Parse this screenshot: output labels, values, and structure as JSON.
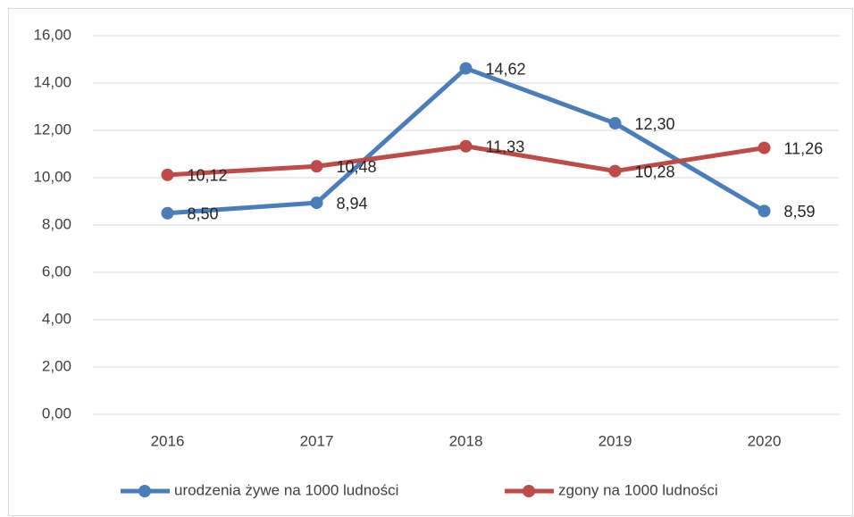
{
  "chart_data": {
    "type": "line",
    "categories": [
      "2016",
      "2017",
      "2018",
      "2019",
      "2020"
    ],
    "series": [
      {
        "name": "urodzenia żywe na 1000 ludności",
        "color": "#4a7ebb",
        "values": [
          8.5,
          8.94,
          14.62,
          12.3,
          8.59
        ],
        "value_labels": [
          "8,50",
          "8,94",
          "14,62",
          "12,30",
          "8,59"
        ]
      },
      {
        "name": "zgony na 1000 ludności",
        "color": "#be4b48",
        "values": [
          10.12,
          10.48,
          11.33,
          10.28,
          11.26
        ],
        "value_labels": [
          "10,12",
          "10,48",
          "11,33",
          "10,28",
          "11,26"
        ]
      }
    ],
    "ylim": [
      0,
      16
    ],
    "yticks": [
      {
        "value": 0,
        "label": "0,00"
      },
      {
        "value": 2,
        "label": "2,00"
      },
      {
        "value": 4,
        "label": "4,00"
      },
      {
        "value": 6,
        "label": "6,00"
      },
      {
        "value": 8,
        "label": "8,00"
      },
      {
        "value": 10,
        "label": "10,00"
      },
      {
        "value": 12,
        "label": "12,00"
      },
      {
        "value": 14,
        "label": "14,00"
      },
      {
        "value": 16,
        "label": "16,00"
      }
    ],
    "grid": true,
    "legend": "bottom"
  }
}
